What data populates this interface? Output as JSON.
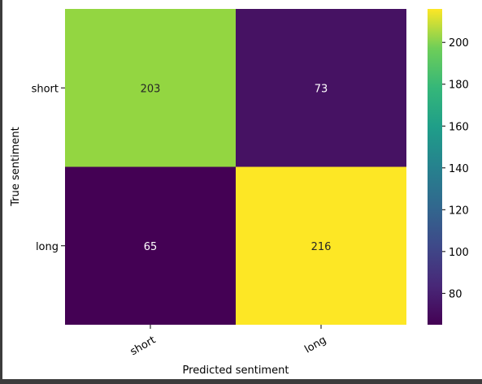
{
  "chart_data": {
    "type": "heatmap",
    "title": "",
    "xlabel": "Predicted sentiment",
    "ylabel": "True sentiment",
    "x_categories": [
      "short",
      "long"
    ],
    "y_categories": [
      "short",
      "long"
    ],
    "values": [
      [
        203,
        73
      ],
      [
        65,
        216
      ]
    ],
    "colormap": "viridis",
    "colorbar": {
      "range": [
        65,
        216
      ],
      "ticks": [
        80,
        100,
        120,
        140,
        160,
        180,
        200
      ]
    },
    "grid": false
  }
}
